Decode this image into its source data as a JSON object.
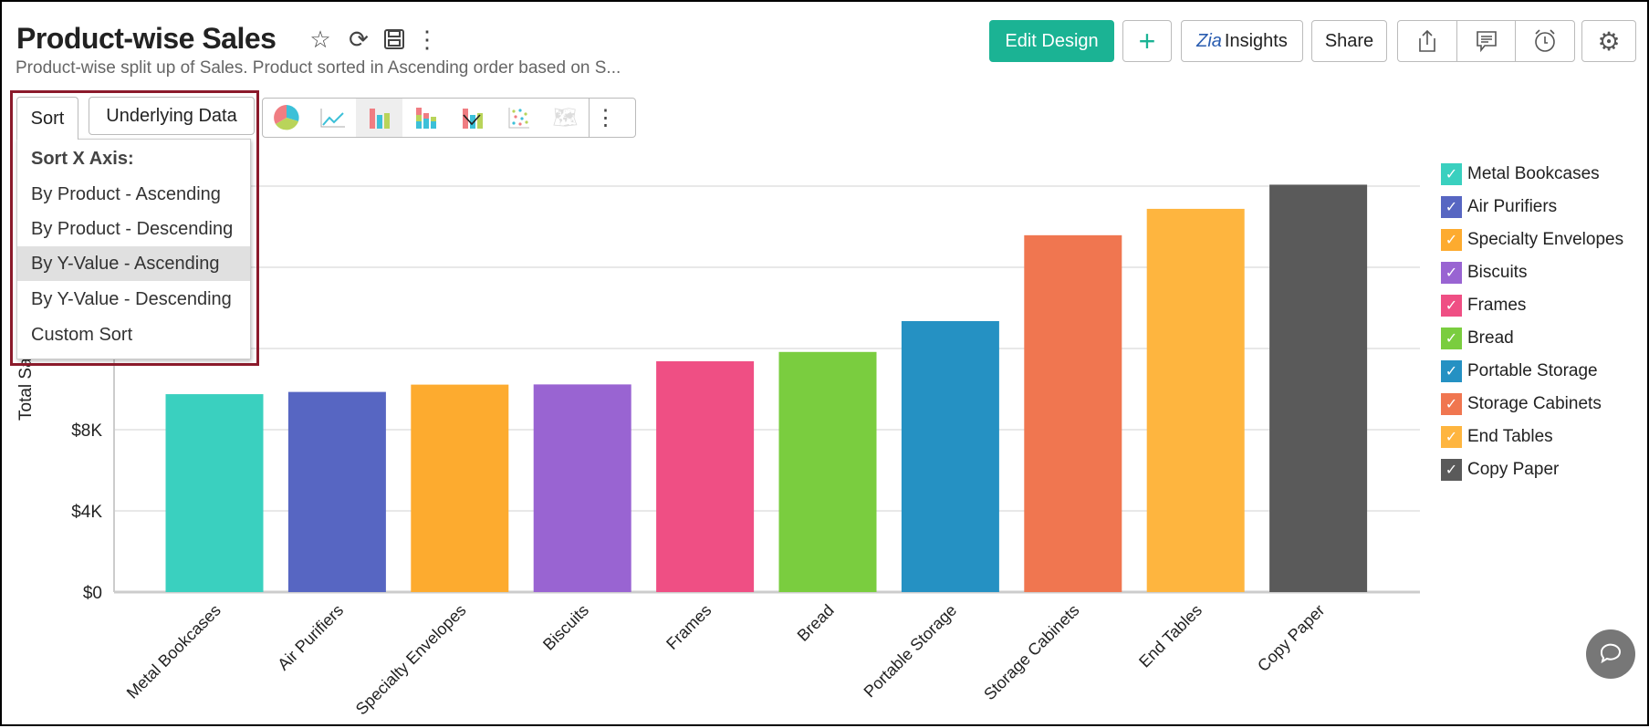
{
  "header": {
    "title": "Product-wise Sales",
    "subtitle": "Product-wise split up of Sales. Product sorted in Ascending order based on S...",
    "icons": [
      "star-icon",
      "refresh-icon",
      "save-icon",
      "more-vertical-icon"
    ],
    "buttons": {
      "edit_design": "Edit Design",
      "add": "+",
      "insights": "Insights",
      "share": "Share"
    },
    "icon_buttons": [
      "export-icon",
      "comment-icon",
      "alarm-icon",
      "gear-icon"
    ],
    "accent": "#1bb394"
  },
  "tabs": {
    "sort": "Sort",
    "underlying_data": "Underlying Data"
  },
  "chart_types": [
    "pie-chart-icon",
    "line-chart-icon",
    "bar-chart-icon",
    "stacked-bar-chart-icon",
    "combo-chart-icon",
    "scatter-chart-icon",
    "map-chart-icon"
  ],
  "chart_type_selected": "bar-chart-icon",
  "sort_menu": {
    "header": "Sort X Axis:",
    "items": [
      "By Product - Ascending",
      "By Product - Descending",
      "By Y-Value - Ascending",
      "By Y-Value - Descending",
      "Custom Sort"
    ],
    "highlighted": "By Y-Value - Ascending"
  },
  "chart_data": {
    "type": "bar",
    "ylabel": "Total Sales",
    "ylim": [
      0,
      20000
    ],
    "yticks": [
      "$0",
      "$4K",
      "$8K"
    ],
    "grid": true,
    "legend_position": "right",
    "categories": [
      "Metal Bookcases",
      "Air Purifiers",
      "Specialty Envelopes",
      "Biscuits",
      "Frames",
      "Bread",
      "Portable Storage",
      "Storage Cabinets",
      "End Tables",
      "Copy Paper"
    ],
    "values": [
      9750,
      9860,
      10220,
      10230,
      11370,
      11830,
      13350,
      17580,
      18880,
      20070
    ],
    "colors": [
      "#3ad0bf",
      "#5766c2",
      "#fdab2f",
      "#9964d2",
      "#ef4f84",
      "#7acd3f",
      "#2591c3",
      "#f07650",
      "#feb53f",
      "#5a5a5a"
    ]
  }
}
